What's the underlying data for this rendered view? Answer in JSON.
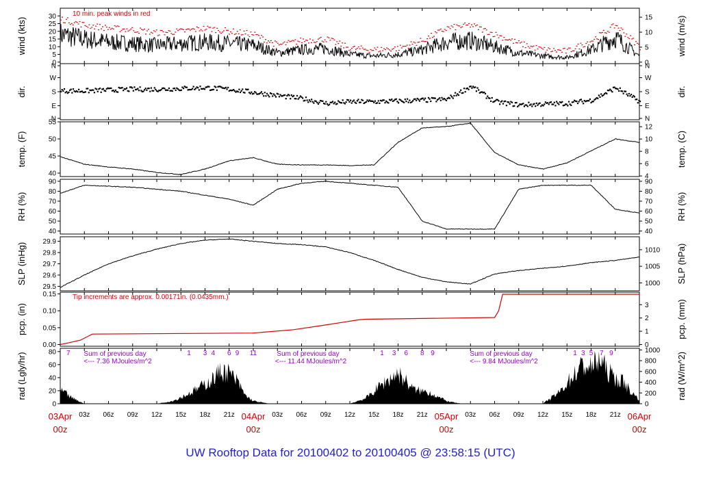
{
  "title": "UW Rooftop Data for 20100402  to  20100405 @ 23:58:15  (UTC)",
  "colors": {
    "trace": "#000000",
    "peak": "#d00000",
    "annot": "#9900cc",
    "title": "#2222cc",
    "date": "#d00000"
  },
  "chart_data": [
    {
      "type": "line",
      "ylabel": "wind (kts)",
      "y2label": "wind (m/s)",
      "ylim": [
        -1,
        35
      ],
      "y2lim": [
        -0.5,
        18
      ],
      "yticks": [
        "0",
        "5",
        "10",
        "15",
        "20",
        "25",
        "30"
      ],
      "y2ticks": [
        "0",
        "5",
        "10",
        "15"
      ],
      "annotation": "10 min. peak winds in red",
      "series": [
        {
          "name": "wind",
          "x": [
            0,
            3,
            6,
            9,
            12,
            15,
            18,
            21,
            24,
            27,
            30,
            33,
            36,
            39,
            42,
            45,
            48,
            51,
            54,
            57,
            60,
            63,
            66,
            69,
            72
          ],
          "y": [
            18,
            15,
            13,
            12,
            11,
            12,
            13,
            12,
            11,
            6,
            8,
            9,
            5,
            4,
            5,
            8,
            13,
            14,
            10,
            6,
            4,
            3,
            8,
            16,
            4
          ]
        },
        {
          "name": "10 min. peak winds",
          "x": [
            0,
            3,
            6,
            9,
            12,
            15,
            18,
            21,
            24,
            27,
            30,
            33,
            36,
            39,
            42,
            45,
            48,
            51,
            54,
            57,
            60,
            63,
            66,
            69,
            72
          ],
          "y": [
            28,
            24,
            22,
            21,
            19,
            20,
            22,
            20,
            18,
            11,
            14,
            15,
            9,
            8,
            9,
            14,
            22,
            24,
            18,
            12,
            8,
            7,
            14,
            24,
            10
          ]
        }
      ]
    },
    {
      "type": "scatter",
      "ylabel": "dir.",
      "y2label": "dir.",
      "ylim": [
        0,
        360
      ],
      "yticks": [
        "N",
        "E",
        "S",
        "W",
        "N"
      ],
      "y2ticks": [
        "N",
        "E",
        "S",
        "W",
        "N"
      ],
      "series": [
        {
          "name": "direction",
          "x": [
            0,
            3,
            6,
            9,
            12,
            15,
            18,
            21,
            24,
            27,
            30,
            33,
            36,
            39,
            42,
            45,
            48,
            51,
            54,
            57,
            60,
            63,
            66,
            69,
            72
          ],
          "y": [
            190,
            190,
            195,
            200,
            200,
            205,
            210,
            200,
            180,
            160,
            140,
            110,
            120,
            120,
            125,
            130,
            135,
            220,
            120,
            100,
            105,
            110,
            130,
            210,
            120
          ]
        }
      ]
    },
    {
      "type": "line",
      "ylabel": "temp. (F)",
      "y2label": "temp. (C)",
      "ylim": [
        39,
        55
      ],
      "y2lim": [
        3.9,
        12.8
      ],
      "yticks": [
        "40",
        "45",
        "50",
        "55"
      ],
      "y2ticks": [
        "4",
        "6",
        "8",
        "10",
        "12"
      ],
      "series": [
        {
          "name": "temperature",
          "x": [
            0,
            3,
            6,
            9,
            12,
            15,
            18,
            21,
            24,
            27,
            30,
            33,
            36,
            39,
            42,
            45,
            48,
            51,
            54,
            57,
            60,
            63,
            66,
            69,
            72
          ],
          "y": [
            44.8,
            42.6,
            41.8,
            41.2,
            40.2,
            39.6,
            41.2,
            43.6,
            44.5,
            42.6,
            42.4,
            42.4,
            42.2,
            42.4,
            49,
            53.2,
            53.6,
            54.6,
            46,
            42.4,
            41.2,
            43,
            46.5,
            50,
            49
          ]
        }
      ]
    },
    {
      "type": "line",
      "ylabel": "RH (%)",
      "y2label": "RH (%)",
      "ylim": [
        37,
        92
      ],
      "yticks": [
        "40",
        "50",
        "60",
        "70",
        "80",
        "90"
      ],
      "y2ticks": [
        "40",
        "50",
        "60",
        "70",
        "80",
        "90"
      ],
      "series": [
        {
          "name": "relative humidity",
          "x": [
            0,
            3,
            6,
            9,
            12,
            15,
            18,
            21,
            24,
            27,
            30,
            33,
            36,
            39,
            42,
            45,
            48,
            51,
            54,
            57,
            60,
            63,
            66,
            69,
            72
          ],
          "y": [
            78,
            86,
            85,
            84,
            82,
            80,
            76,
            72,
            66,
            82,
            88,
            90,
            88,
            86,
            84,
            50,
            42,
            42,
            42,
            82,
            86,
            86,
            86,
            62,
            58
          ]
        }
      ]
    },
    {
      "type": "line",
      "ylabel": "SLP (inHg)",
      "y2label": "SLP (hPa)",
      "ylim": [
        29.46,
        29.94
      ],
      "y2lim": [
        997.6,
        1013.9
      ],
      "yticks": [
        "29.5",
        "29.6",
        "29.7",
        "29.8",
        "29.9"
      ],
      "y2ticks": [
        "1000",
        "1005",
        "1010"
      ],
      "series": [
        {
          "name": "sea level pressure",
          "x": [
            0,
            3,
            6,
            9,
            12,
            15,
            18,
            21,
            24,
            27,
            30,
            33,
            36,
            39,
            42,
            45,
            48,
            51,
            54,
            57,
            60,
            63,
            66,
            69,
            72
          ],
          "y": [
            29.49,
            29.6,
            29.7,
            29.77,
            29.83,
            29.88,
            29.91,
            29.92,
            29.9,
            29.88,
            29.87,
            29.85,
            29.8,
            29.73,
            29.65,
            29.58,
            29.54,
            29.52,
            29.61,
            29.64,
            29.66,
            29.68,
            29.71,
            29.73,
            29.76
          ]
        }
      ]
    },
    {
      "type": "line",
      "ylabel": "pcp. (in)",
      "y2label": "pcp. (mm)",
      "ylim": [
        -0.005,
        0.155
      ],
      "y2lim": [
        -0.127,
        3.94
      ],
      "yticks": [
        "0.00",
        "0.05",
        "0.10",
        "0.15"
      ],
      "y2ticks": [
        "0",
        "1",
        "2",
        "3"
      ],
      "annotation": "Tip increments are approx. 0.00171in. (0.0435mm.)",
      "series": [
        {
          "name": "accumulated precipitation",
          "x": [
            0,
            1,
            2.5,
            4,
            24,
            29,
            33,
            37,
            38,
            54,
            54.5,
            55,
            72
          ],
          "y": [
            0,
            0.005,
            0.013,
            0.031,
            0.034,
            0.044,
            0.058,
            0.073,
            0.075,
            0.08,
            0.1,
            0.149,
            0.149
          ]
        }
      ]
    },
    {
      "type": "area",
      "ylabel": "rad (Lgly/hr)",
      "y2label": "rad (W/m^2)",
      "ylim": [
        0,
        85
      ],
      "y2lim": [
        0,
        1030
      ],
      "yticks": [
        "0",
        "20",
        "40",
        "60",
        "80"
      ],
      "y2ticks": [
        "0",
        "200",
        "400",
        "600",
        "800",
        "1000"
      ],
      "hour_marks": [
        {
          "day": 0,
          "labels": [
            {
              "t": "7",
              "h": 1
            },
            {
              "t": "1",
              "h": 16
            },
            {
              "t": "3",
              "h": 18
            },
            {
              "t": "4",
              "h": 19
            },
            {
              "t": "6",
              "h": 21
            },
            {
              "t": "9",
              "h": 22
            },
            {
              "t": "11",
              "h": 24
            }
          ]
        },
        {
          "day": 1,
          "labels": [
            {
              "t": "1",
              "h": 40
            },
            {
              "t": "3",
              "h": 41.5
            },
            {
              "t": "6",
              "h": 43
            },
            {
              "t": "8",
              "h": 45
            },
            {
              "t": "9",
              "h": 46.3
            }
          ]
        },
        {
          "day": 2,
          "labels": [
            {
              "t": "1",
              "h": 64
            },
            {
              "t": "3",
              "h": 65
            },
            {
              "t": "5",
              "h": 66
            },
            {
              "t": "7",
              "h": 67.3
            },
            {
              "t": "9",
              "h": 68.5
            }
          ]
        }
      ],
      "daily_sums": [
        {
          "label": "Sum of previous day",
          "value": "<--- 7.36 MJoules/m^2"
        },
        {
          "label": "Sum of previous day",
          "value": "<--- 11.44 MJoules/m^2"
        },
        {
          "label": "Sum of previous day",
          "value": "<--- 9.84 MJoules/m^2"
        }
      ],
      "series": [
        {
          "name": "solar radiation",
          "x": [
            0,
            1.5,
            3,
            12,
            14,
            16,
            18,
            19,
            20,
            21,
            22,
            23,
            24,
            26,
            27,
            36,
            38,
            40,
            42,
            43,
            44,
            46,
            47,
            48,
            49,
            50,
            60,
            62,
            64,
            65,
            66,
            67,
            68,
            69,
            70,
            71,
            72
          ],
          "y": [
            25,
            10,
            0,
            0,
            5,
            18,
            35,
            45,
            60,
            55,
            40,
            15,
            5,
            0,
            0,
            0,
            10,
            35,
            55,
            40,
            25,
            20,
            12,
            5,
            2,
            0,
            0,
            20,
            55,
            70,
            65,
            80,
            60,
            45,
            40,
            20,
            8
          ]
        }
      ]
    }
  ],
  "time_axis": {
    "xlim": [
      0,
      72
    ],
    "hour_ticks": [
      "03z",
      "06z",
      "09z",
      "12z",
      "15z",
      "18z",
      "21z",
      "03z",
      "06z",
      "09z",
      "12z",
      "15z",
      "18z",
      "21z",
      "03z",
      "06z",
      "09z",
      "12z",
      "15z",
      "18z",
      "21z"
    ],
    "dates": [
      {
        "label": "03Apr",
        "sub": "00z",
        "h": 0
      },
      {
        "label": "04Apr",
        "sub": "00z",
        "h": 24
      },
      {
        "label": "05Apr",
        "sub": "00z",
        "h": 48
      },
      {
        "label": "06Apr",
        "sub": "00z",
        "h": 72
      }
    ]
  }
}
